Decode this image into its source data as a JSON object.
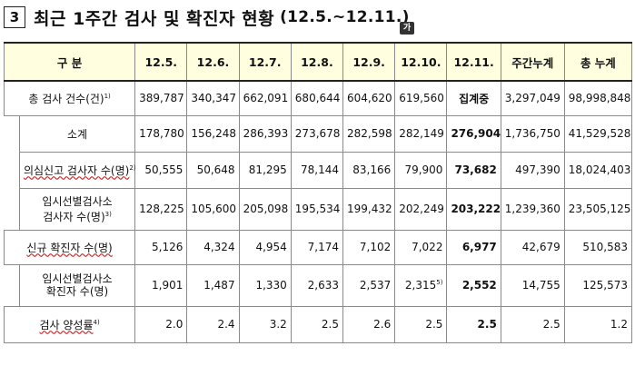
{
  "header": {
    "number": "3",
    "title": "최근 1주간 검사 및 확진자 현황",
    "date_range": "(12.5.~12.11.)",
    "badge": "가"
  },
  "table": {
    "columns": [
      "구 분",
      "12.5.",
      "12.6.",
      "12.7.",
      "12.8.",
      "12.9.",
      "12.10.",
      "12.11.",
      "주간누계",
      "총 누계"
    ],
    "rows": [
      {
        "label": "총 검사 건수(건)",
        "sup": "1)",
        "values": [
          "389,787",
          "340,347",
          "662,091",
          "680,644",
          "604,620",
          "619,560",
          "집계중",
          "3,297,049",
          "98,998,848"
        ]
      },
      {
        "label": "소계",
        "sup": "",
        "values": [
          "178,780",
          "156,248",
          "286,393",
          "273,678",
          "282,598",
          "282,149",
          "276,904",
          "1,736,750",
          "41,529,528"
        ]
      },
      {
        "label": "의심신고 검사자 수(명)",
        "sup": "2)",
        "values": [
          "50,555",
          "50,648",
          "81,295",
          "78,144",
          "83,166",
          "79,900",
          "73,682",
          "497,390",
          "18,024,403"
        ]
      },
      {
        "label_line1": "임시선별검사소",
        "label_line2": "검사자 수(명)",
        "sup": "3)",
        "values": [
          "128,225",
          "105,600",
          "205,098",
          "195,534",
          "199,432",
          "202,249",
          "203,222",
          "1,239,360",
          "23,505,125"
        ]
      },
      {
        "label": "신규 확진자 수(명)",
        "sup": "",
        "values": [
          "5,126",
          "4,324",
          "4,954",
          "7,174",
          "7,102",
          "7,022",
          "6,977",
          "42,679",
          "510,583"
        ]
      },
      {
        "label_line1": "임시선별검사소",
        "label_line2": "확진자 수(명)",
        "sup": "",
        "values": [
          "1,901",
          "1,487",
          "1,330",
          "2,633",
          "2,537",
          "2,315",
          "2,552",
          "14,755",
          "125,573"
        ],
        "cell_sup": "5)"
      },
      {
        "label": "검사 양성률",
        "sup": "4)",
        "values": [
          "2.0",
          "2.4",
          "3.2",
          "2.5",
          "2.6",
          "2.5",
          "2.5",
          "2.5",
          "1.2"
        ]
      }
    ]
  }
}
